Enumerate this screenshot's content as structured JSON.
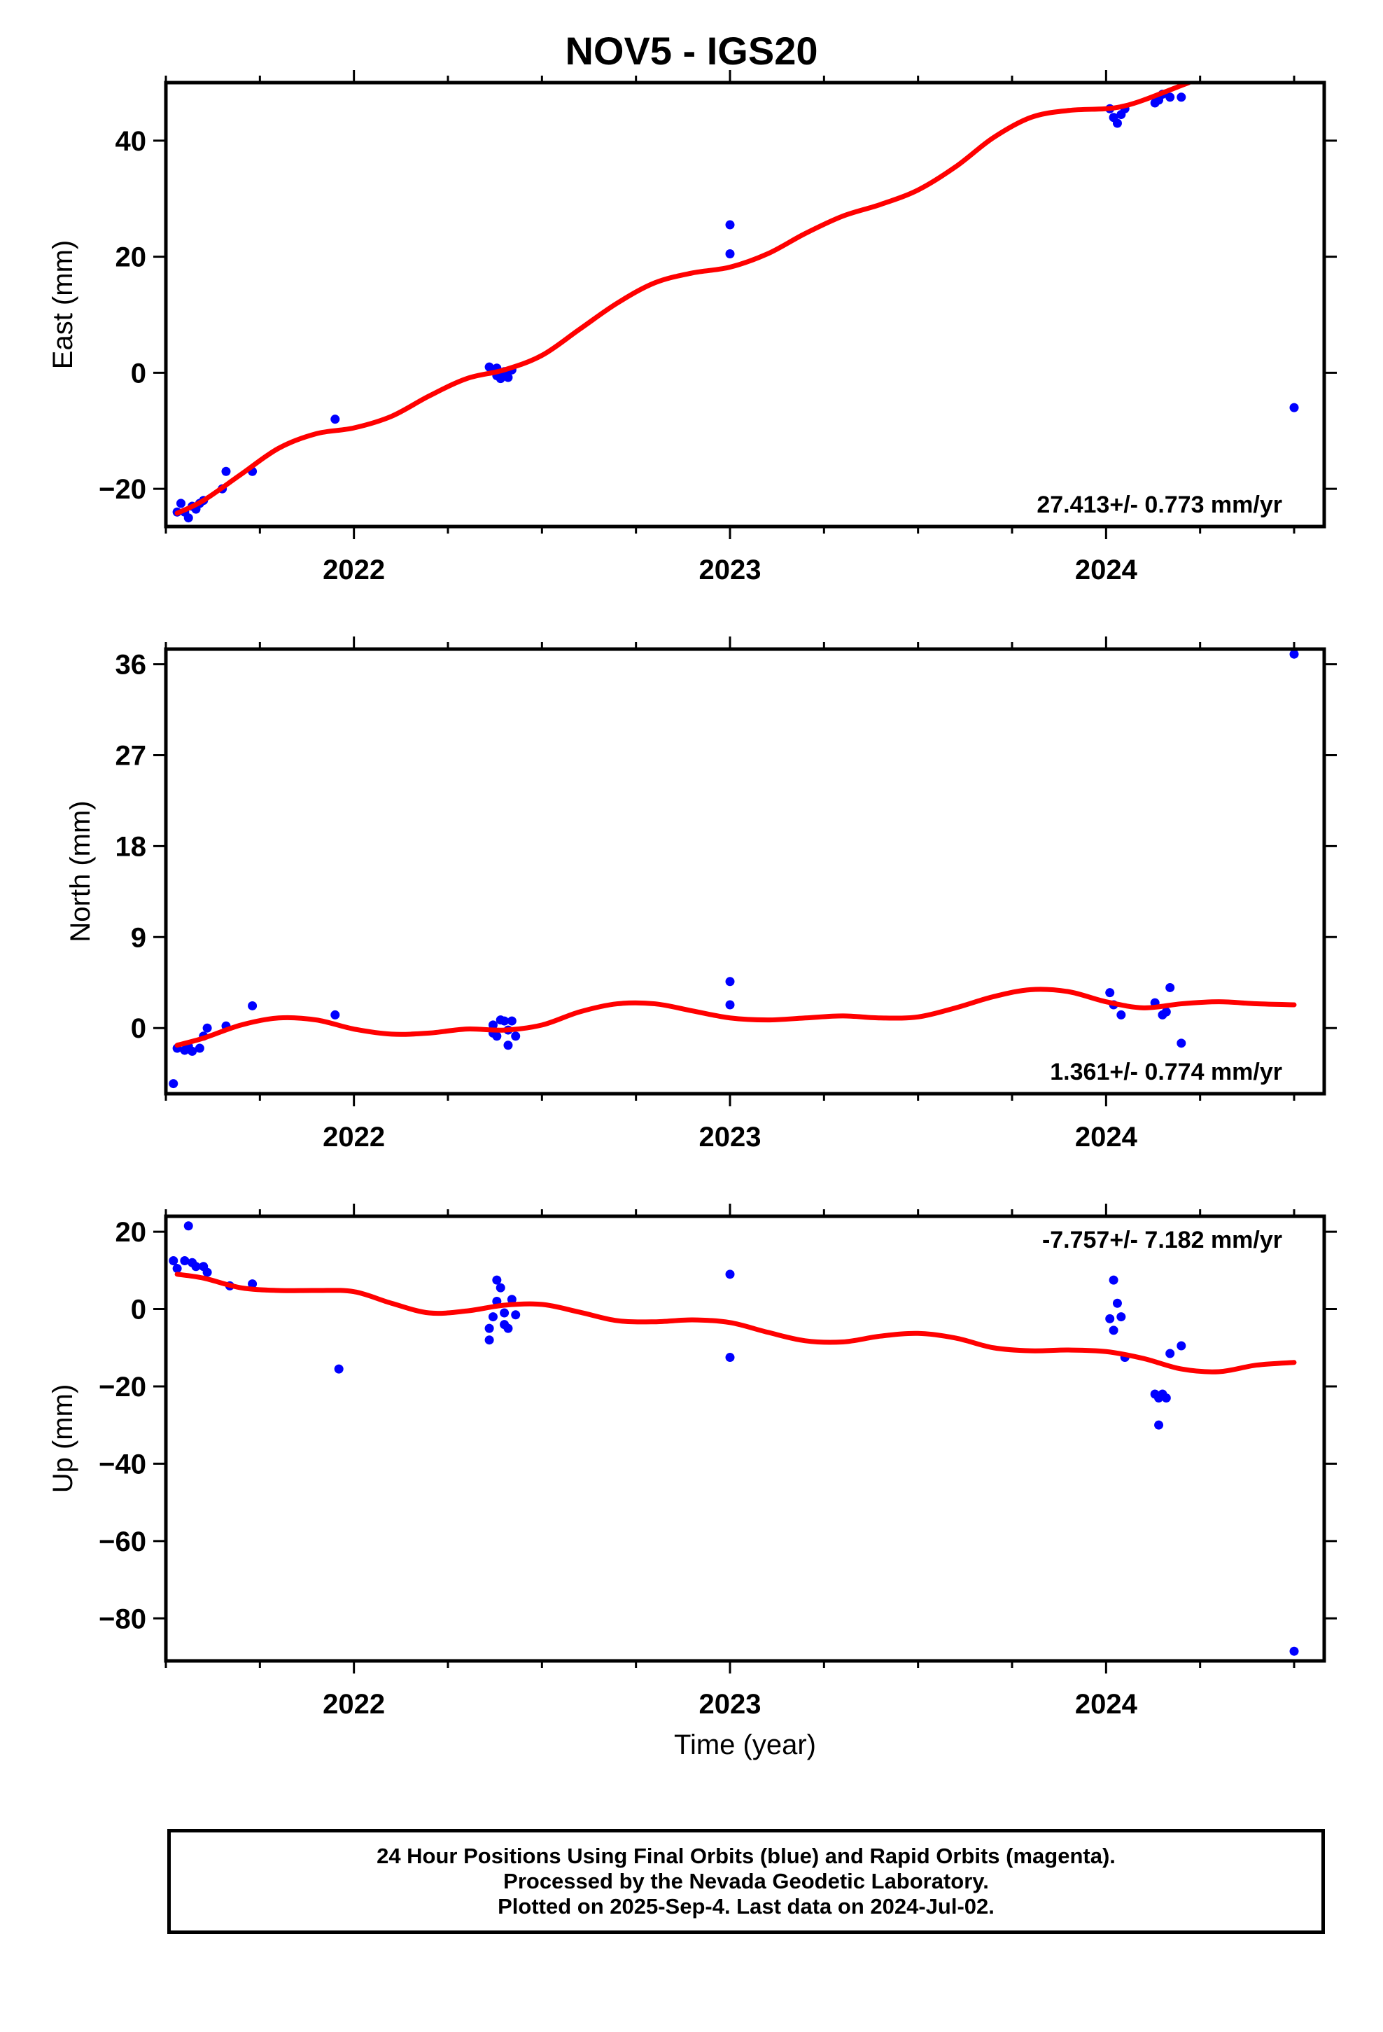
{
  "title": "NOV5 - IGS20",
  "colors": {
    "points": "#0000ff",
    "fit": "#ff0000",
    "frame": "#000000"
  },
  "footer": {
    "line1": "24 Hour Positions Using Final Orbits (blue) and Rapid Orbits (magenta).",
    "line2": "Processed by the Nevada Geodetic Laboratory.",
    "line3": "Plotted on 2025-Sep-4. Last data on 2024-Jul-02."
  },
  "chart_data": [
    {
      "type": "scatter",
      "ylabel": "East (mm)",
      "xlabel": "",
      "xlim": [
        2021.5,
        2024.58
      ],
      "ylim": [
        -26.5,
        50
      ],
      "yticks": [
        -20,
        0,
        20,
        40
      ],
      "xticks": [
        2022,
        2023,
        2024
      ],
      "rate_label": "27.413+/- 0.773 mm/yr",
      "rate_position": "bottom-right",
      "points": [
        [
          2021.53,
          -24
        ],
        [
          2021.54,
          -22.5
        ],
        [
          2021.55,
          -24
        ],
        [
          2021.56,
          -25
        ],
        [
          2021.57,
          -23
        ],
        [
          2021.58,
          -23.5
        ],
        [
          2021.59,
          -22.5
        ],
        [
          2021.6,
          -22
        ],
        [
          2021.65,
          -20
        ],
        [
          2021.66,
          -17
        ],
        [
          2021.73,
          -17
        ],
        [
          2021.95,
          -8
        ],
        [
          2022.36,
          1
        ],
        [
          2022.37,
          0.5
        ],
        [
          2022.38,
          -0.5
        ],
        [
          2022.38,
          0.8
        ],
        [
          2022.39,
          -1
        ],
        [
          2022.4,
          0.2
        ],
        [
          2022.41,
          -0.8
        ],
        [
          2022.42,
          0.5
        ],
        [
          2023.0,
          20.5
        ],
        [
          2023.0,
          25.5
        ],
        [
          2024.01,
          45.5
        ],
        [
          2024.02,
          44
        ],
        [
          2024.03,
          43
        ],
        [
          2024.04,
          44.5
        ],
        [
          2024.05,
          45.5
        ],
        [
          2024.13,
          46.5
        ],
        [
          2024.14,
          47
        ],
        [
          2024.15,
          48
        ],
        [
          2024.17,
          47.5
        ],
        [
          2024.2,
          47.5
        ],
        [
          2024.5,
          -6
        ]
      ],
      "fit": [
        [
          2021.53,
          -24.2
        ],
        [
          2021.6,
          -22
        ],
        [
          2021.7,
          -17.5
        ],
        [
          2021.8,
          -13
        ],
        [
          2021.9,
          -10.5
        ],
        [
          2022.0,
          -9.5
        ],
        [
          2022.1,
          -7.5
        ],
        [
          2022.2,
          -4
        ],
        [
          2022.3,
          -1
        ],
        [
          2022.4,
          0.5
        ],
        [
          2022.5,
          3
        ],
        [
          2022.6,
          7.5
        ],
        [
          2022.7,
          12
        ],
        [
          2022.8,
          15.5
        ],
        [
          2022.9,
          17.2
        ],
        [
          2023.0,
          18.2
        ],
        [
          2023.1,
          20.5
        ],
        [
          2023.2,
          24
        ],
        [
          2023.3,
          27
        ],
        [
          2023.4,
          29
        ],
        [
          2023.5,
          31.5
        ],
        [
          2023.6,
          35.5
        ],
        [
          2023.7,
          40.5
        ],
        [
          2023.8,
          44
        ],
        [
          2023.9,
          45.2
        ],
        [
          2024.0,
          45.5
        ],
        [
          2024.05,
          46
        ],
        [
          2024.1,
          47
        ],
        [
          2024.2,
          49.5
        ],
        [
          2024.22,
          50
        ]
      ]
    },
    {
      "type": "scatter",
      "ylabel": "North (mm)",
      "xlabel": "",
      "xlim": [
        2021.5,
        2024.58
      ],
      "ylim": [
        -6.5,
        37.5
      ],
      "yticks": [
        0,
        9,
        18,
        27,
        36
      ],
      "xticks": [
        2022,
        2023,
        2024
      ],
      "rate_label": "1.361+/- 0.774 mm/yr",
      "rate_position": "bottom-right",
      "points": [
        [
          2021.52,
          -5.5
        ],
        [
          2021.53,
          -2
        ],
        [
          2021.55,
          -2.2
        ],
        [
          2021.56,
          -1.8
        ],
        [
          2021.57,
          -2.3
        ],
        [
          2021.59,
          -2
        ],
        [
          2021.6,
          -0.8
        ],
        [
          2021.61,
          0
        ],
        [
          2021.66,
          0.2
        ],
        [
          2021.73,
          2.2
        ],
        [
          2021.95,
          1.3
        ],
        [
          2022.37,
          0.3
        ],
        [
          2022.37,
          -0.5
        ],
        [
          2022.38,
          -0.8
        ],
        [
          2022.39,
          0.8
        ],
        [
          2022.4,
          0.7
        ],
        [
          2022.41,
          -1.7
        ],
        [
          2022.41,
          -0.2
        ],
        [
          2022.42,
          0.7
        ],
        [
          2022.43,
          -0.8
        ],
        [
          2023.0,
          2.3
        ],
        [
          2023.0,
          4.6
        ],
        [
          2024.01,
          3.5
        ],
        [
          2024.02,
          2.3
        ],
        [
          2024.04,
          1.3
        ],
        [
          2024.13,
          2.5
        ],
        [
          2024.15,
          1.3
        ],
        [
          2024.16,
          1.6
        ],
        [
          2024.17,
          4
        ],
        [
          2024.2,
          -1.5
        ],
        [
          2024.5,
          37
        ]
      ],
      "fit": [
        [
          2021.53,
          -1.7
        ],
        [
          2021.6,
          -1
        ],
        [
          2021.7,
          0.3
        ],
        [
          2021.8,
          1
        ],
        [
          2021.9,
          0.8
        ],
        [
          2022.0,
          -0.1
        ],
        [
          2022.1,
          -0.6
        ],
        [
          2022.2,
          -0.5
        ],
        [
          2022.3,
          -0.1
        ],
        [
          2022.4,
          -0.2
        ],
        [
          2022.5,
          0.3
        ],
        [
          2022.6,
          1.6
        ],
        [
          2022.7,
          2.4
        ],
        [
          2022.8,
          2.4
        ],
        [
          2022.9,
          1.7
        ],
        [
          2023.0,
          1
        ],
        [
          2023.1,
          0.8
        ],
        [
          2023.2,
          1
        ],
        [
          2023.3,
          1.2
        ],
        [
          2023.4,
          1
        ],
        [
          2023.5,
          1.1
        ],
        [
          2023.6,
          2
        ],
        [
          2023.7,
          3.1
        ],
        [
          2023.8,
          3.8
        ],
        [
          2023.9,
          3.6
        ],
        [
          2024.0,
          2.6
        ],
        [
          2024.1,
          2
        ],
        [
          2024.2,
          2.4
        ],
        [
          2024.3,
          2.6
        ],
        [
          2024.4,
          2.4
        ],
        [
          2024.5,
          2.3
        ]
      ]
    },
    {
      "type": "scatter",
      "ylabel": "Up (mm)",
      "xlabel": "Time (year)",
      "xlim": [
        2021.5,
        2024.58
      ],
      "ylim": [
        -91,
        24
      ],
      "yticks": [
        -80,
        -60,
        -40,
        -20,
        0,
        20
      ],
      "xticks": [
        2022,
        2023,
        2024
      ],
      "rate_label": "-7.757+/- 7.182 mm/yr",
      "rate_position": "top-right",
      "points": [
        [
          2021.52,
          12.5
        ],
        [
          2021.53,
          10.5
        ],
        [
          2021.55,
          12.5
        ],
        [
          2021.56,
          21.5
        ],
        [
          2021.57,
          12
        ],
        [
          2021.58,
          11
        ],
        [
          2021.6,
          11
        ],
        [
          2021.61,
          9.5
        ],
        [
          2021.67,
          6
        ],
        [
          2021.73,
          6.5
        ],
        [
          2021.96,
          -15.5
        ],
        [
          2022.36,
          -8
        ],
        [
          2022.36,
          -5
        ],
        [
          2022.37,
          -2
        ],
        [
          2022.38,
          7.5
        ],
        [
          2022.38,
          2
        ],
        [
          2022.39,
          5.5
        ],
        [
          2022.4,
          -4
        ],
        [
          2022.4,
          -1
        ],
        [
          2022.41,
          -5
        ],
        [
          2022.42,
          2.5
        ],
        [
          2022.43,
          -1.5
        ],
        [
          2023.0,
          9
        ],
        [
          2023.0,
          -12.5
        ],
        [
          2024.01,
          -2.5
        ],
        [
          2024.02,
          -5.5
        ],
        [
          2024.02,
          7.5
        ],
        [
          2024.03,
          1.5
        ],
        [
          2024.04,
          -2
        ],
        [
          2024.05,
          -12.5
        ],
        [
          2024.13,
          -22
        ],
        [
          2024.14,
          -23
        ],
        [
          2024.14,
          -30
        ],
        [
          2024.15,
          -22
        ],
        [
          2024.16,
          -23
        ],
        [
          2024.17,
          -11.5
        ],
        [
          2024.2,
          -9.5
        ],
        [
          2024.5,
          -88.5
        ]
      ],
      "fit": [
        [
          2021.53,
          9
        ],
        [
          2021.6,
          8
        ],
        [
          2021.7,
          5.5
        ],
        [
          2021.8,
          4.8
        ],
        [
          2021.9,
          4.8
        ],
        [
          2022.0,
          4.5
        ],
        [
          2022.1,
          1.5
        ],
        [
          2022.2,
          -1
        ],
        [
          2022.3,
          -0.5
        ],
        [
          2022.4,
          1
        ],
        [
          2022.5,
          1.2
        ],
        [
          2022.6,
          -0.8
        ],
        [
          2022.7,
          -3
        ],
        [
          2022.8,
          -3.3
        ],
        [
          2022.9,
          -2.8
        ],
        [
          2023.0,
          -3.5
        ],
        [
          2023.1,
          -6
        ],
        [
          2023.2,
          -8.2
        ],
        [
          2023.3,
          -8.5
        ],
        [
          2023.4,
          -7
        ],
        [
          2023.5,
          -6.3
        ],
        [
          2023.6,
          -7.5
        ],
        [
          2023.7,
          -10
        ],
        [
          2023.8,
          -10.8
        ],
        [
          2023.9,
          -10.6
        ],
        [
          2024.0,
          -11
        ],
        [
          2024.1,
          -12.8
        ],
        [
          2024.2,
          -15.5
        ],
        [
          2024.3,
          -16.2
        ],
        [
          2024.4,
          -14.5
        ],
        [
          2024.5,
          -13.8
        ]
      ]
    }
  ]
}
